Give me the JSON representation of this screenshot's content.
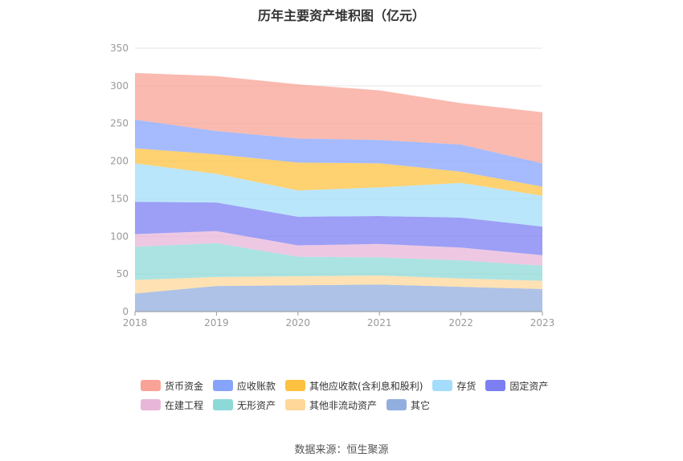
{
  "chart_data": {
    "type": "area",
    "title": "历年主要资产堆积图（亿元）",
    "x": [
      "2018",
      "2019",
      "2020",
      "2021",
      "2022",
      "2023"
    ],
    "ylim": [
      0,
      350
    ],
    "yticks": [
      "0",
      "50",
      "100",
      "150",
      "200",
      "250",
      "300",
      "350"
    ],
    "grid": true,
    "legend_position": "bottom",
    "stacked": true,
    "series": [
      {
        "name": "其它",
        "color": "#92aede",
        "values": [
          24,
          34,
          35,
          36,
          33,
          30
        ]
      },
      {
        "name": "其他非流动资产",
        "color": "#ffd799",
        "values": [
          18,
          12,
          12,
          12,
          11,
          11
        ]
      },
      {
        "name": "无形资产",
        "color": "#8dd9d7",
        "values": [
          44,
          45,
          26,
          24,
          24,
          20
        ]
      },
      {
        "name": "在建工程",
        "color": "#e8b6d9",
        "values": [
          17,
          16,
          15,
          18,
          17,
          14
        ]
      },
      {
        "name": "固定资产",
        "color": "#7b7ff1",
        "values": [
          43,
          38,
          38,
          37,
          40,
          38
        ]
      },
      {
        "name": "存货",
        "color": "#a3ddfb",
        "values": [
          51,
          38,
          35,
          38,
          46,
          41
        ]
      },
      {
        "name": "其他应收款(含利息和股利)",
        "color": "#fdc141",
        "values": [
          20,
          26,
          37,
          32,
          15,
          12
        ]
      },
      {
        "name": "应收账款",
        "color": "#87a4fc",
        "values": [
          38,
          31,
          32,
          31,
          36,
          31
        ]
      },
      {
        "name": "货币资金",
        "color": "#f8a396",
        "values": [
          62,
          73,
          72,
          66,
          55,
          68
        ]
      }
    ]
  },
  "legend": [
    {
      "label": "货币资金",
      "color": "#f8a396"
    },
    {
      "label": "应收账款",
      "color": "#87a4fc"
    },
    {
      "label": "其他应收款(含利息和股利)",
      "color": "#fdc141"
    },
    {
      "label": "存货",
      "color": "#a3ddfb"
    },
    {
      "label": "固定资产",
      "color": "#7b7ff1"
    },
    {
      "label": "在建工程",
      "color": "#e8b6d9"
    },
    {
      "label": "无形资产",
      "color": "#8dd9d7"
    },
    {
      "label": "其他非流动资产",
      "color": "#ffd799"
    },
    {
      "label": "其它",
      "color": "#92aede"
    }
  ],
  "source": "数据来源：恒生聚源"
}
